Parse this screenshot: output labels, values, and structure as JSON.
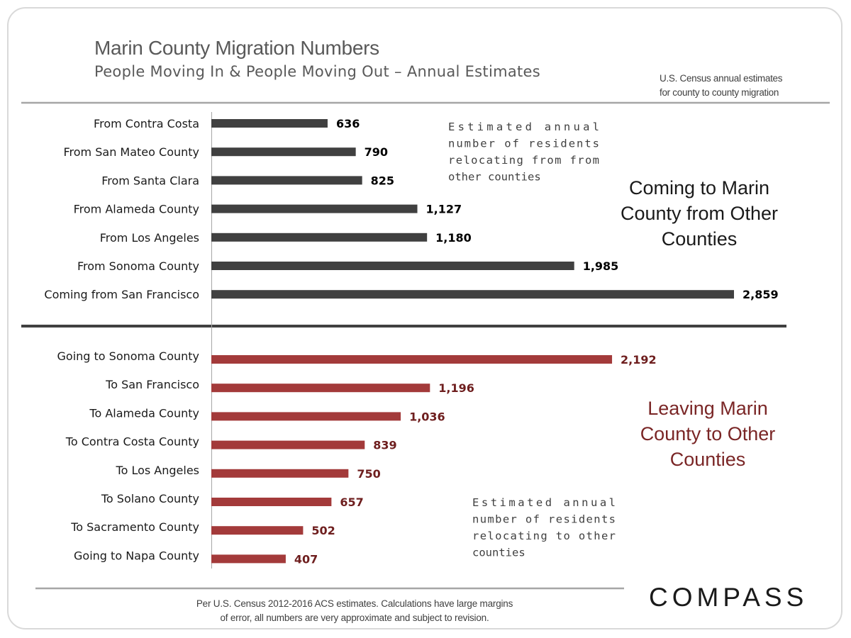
{
  "header": {
    "title": "Marin County Migration Numbers",
    "subtitle": "People Moving In & People Moving Out – Annual Estimates",
    "source_line1": "U.S. Census annual estimates",
    "source_line2": "for county to county migration"
  },
  "footer": {
    "note_line1": "Per U.S. Census 2012-2016 ACS estimates. Calculations have large margins",
    "note_line2": "of error, all numbers are very approximate and subject to revision.",
    "logo": "COMPASS"
  },
  "colors": {
    "incoming_bar": "#404040",
    "outgoing_bar": "#a33a3a",
    "outgoing_text": "#7a2626",
    "divider": "#404040",
    "rule": "#a6a6a6"
  },
  "chart_data": [
    {
      "type": "bar",
      "orientation": "horizontal",
      "panel": "incoming",
      "categories": [
        "From Contra Costa",
        "From San Mateo County",
        "From Santa Clara",
        "From Alameda County",
        "From Los Angeles",
        "From Sonoma County",
        "Coming from San Francisco"
      ],
      "values": [
        636,
        790,
        825,
        1127,
        1180,
        1985,
        2859
      ],
      "value_labels": [
        "636",
        "790",
        "825",
        "1,127",
        "1,180",
        "1,985",
        "2,859"
      ],
      "xlim": [
        0,
        2900
      ],
      "heading": "Coming to Marin County from Other Counties",
      "heading_lines": [
        "Coming to Marin",
        "County from Other",
        "Counties"
      ],
      "annotation": "Estimated annual number of residents relocating from other counties",
      "annotation_lines": [
        "Estimated annual",
        "number of residents",
        "relocating from from",
        "other counties"
      ]
    },
    {
      "type": "bar",
      "orientation": "horizontal",
      "panel": "outgoing",
      "categories": [
        "Going to Sonoma County",
        "To San Francisco",
        "To Alameda County",
        "To Contra Costa County",
        "To Los Angeles",
        "To Solano County",
        "To Sacramento County",
        "Going to Napa County"
      ],
      "values": [
        2192,
        1196,
        1036,
        839,
        750,
        657,
        502,
        407
      ],
      "value_labels": [
        "2,192",
        "1,196",
        "1,036",
        "839",
        "750",
        "657",
        "502",
        "407"
      ],
      "xlim": [
        0,
        2900
      ],
      "heading": "Leaving Marin County to Other Counties",
      "heading_lines": [
        "Leaving Marin",
        "County to Other",
        "Counties"
      ],
      "annotation": "Estimated annual number of residents relocating to other counties",
      "annotation_lines": [
        "Estimated annual",
        "number of residents",
        "relocating to other",
        "counties"
      ]
    }
  ]
}
